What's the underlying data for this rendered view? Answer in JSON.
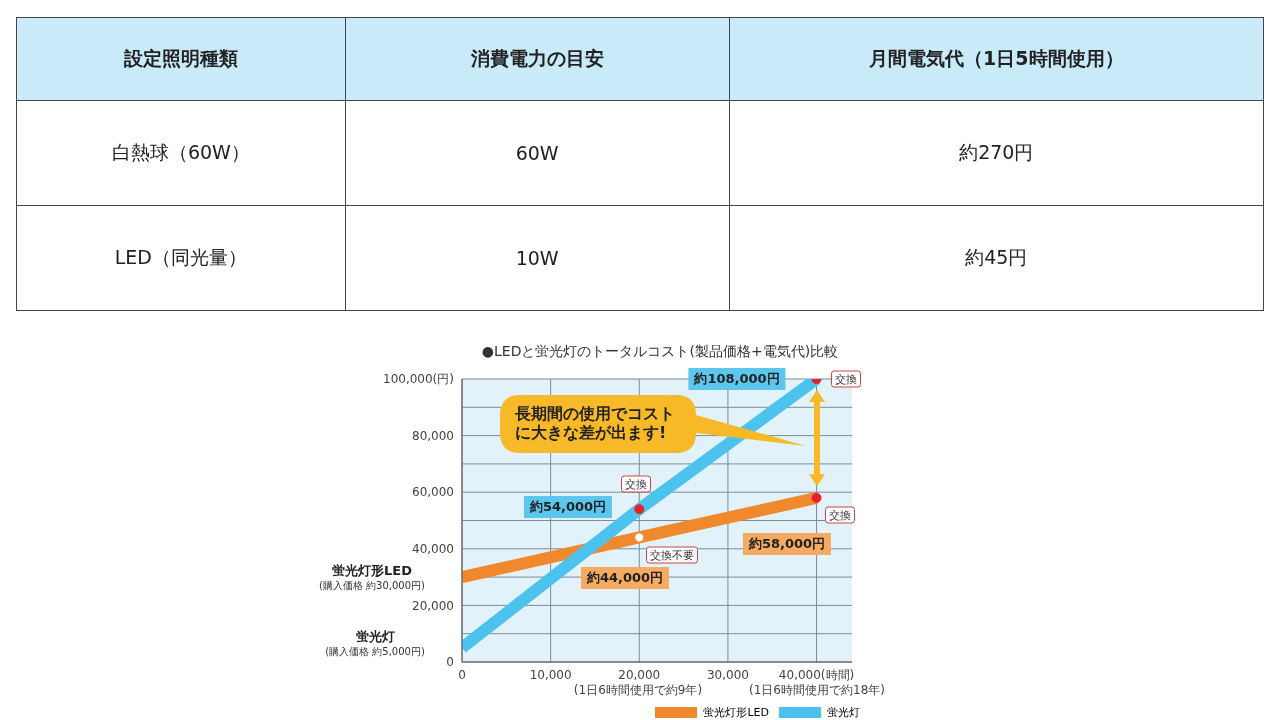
{
  "chart_data": [
    {
      "type": "other",
      "annotations": [
        "設定照明種類",
        "消費電力の目安",
        "月間電気代（1日5時間使用）",
        "白熱球（60W）",
        "60W",
        "約270円",
        "LED（同光量）",
        "10W",
        "約45円"
      ]
    },
    {
      "type": "line",
      "title": "●LEDと蛍光灯のトータルコスト(製品価格+電気代)比較",
      "xlim": [
        0,
        44000
      ],
      "ylim": [
        0,
        100000
      ],
      "xticks": [
        {
          "value": 0,
          "label": "0"
        },
        {
          "value": 10000,
          "label": "10,000"
        },
        {
          "value": 20000,
          "label": "20,000"
        },
        {
          "value": 30000,
          "label": "30,000"
        },
        {
          "value": 40000,
          "label": "40,000(時間)"
        }
      ],
      "yticks": [
        {
          "value": 0,
          "label": "0"
        },
        {
          "value": 10000,
          "label": null
        },
        {
          "value": 20000,
          "label": "20,000"
        },
        {
          "value": 30000,
          "label": null
        },
        {
          "value": 40000,
          "label": "40,000"
        },
        {
          "value": 50000,
          "label": null
        },
        {
          "value": 60000,
          "label": "60,000"
        },
        {
          "value": 70000,
          "label": null
        },
        {
          "value": 80000,
          "label": "80,000"
        },
        {
          "value": 90000,
          "label": null
        },
        {
          "value": 100000,
          "label": "100,000(円)"
        }
      ],
      "grid": true,
      "legend": "bottom right",
      "line_style": "solid",
      "series": [
        {
          "name": "蛍光灯形LED",
          "color": "#f0882d",
          "x": [
            0,
            20000,
            40000
          ],
          "values": [
            30000,
            44000,
            58000
          ]
        },
        {
          "name": "蛍光灯",
          "color": "#4cc3ee",
          "x": [
            0,
            20000,
            40000
          ],
          "values": [
            5000,
            54000,
            100000
          ]
        },
        {
          "type": "scatter",
          "marker": "circle",
          "color": "#e8202a",
          "x": [
            20000,
            40000,
            40000
          ],
          "values": [
            54000,
            100000,
            58000
          ]
        },
        {
          "type": "scatter",
          "marker": "circle",
          "color": "#ffffff",
          "x": [
            20000
          ],
          "values": [
            44000
          ]
        }
      ],
      "annotations": [
        "約108,000円",
        "交換",
        "約54,000円",
        "交換",
        "約58,000円",
        "交換",
        "約44,000円",
        "交換不要",
        "長期間の使用でコストに大きな差が出ます!",
        "蛍光灯形LED",
        "(購入価格 約30,000円)",
        "蛍光灯",
        "(購入価格 約5,000円)",
        "(1日6時間使用で約9年)",
        "(1日6時間使用で約18年)"
      ]
    }
  ]
}
